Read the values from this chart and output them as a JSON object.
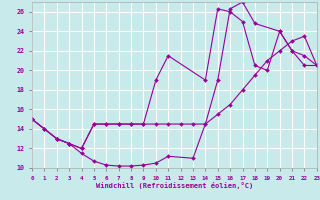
{
  "xlabel": "Windchill (Refroidissement éolien,°C)",
  "bg_color": "#c8eaea",
  "line_color": "#990099",
  "grid_color": "#ffffff",
  "xmin": 0,
  "xmax": 23,
  "ymin": 10,
  "ymax": 27,
  "yticks": [
    10,
    12,
    14,
    16,
    18,
    20,
    22,
    24,
    26
  ],
  "xticks": [
    0,
    1,
    2,
    3,
    4,
    5,
    6,
    7,
    8,
    9,
    10,
    11,
    12,
    13,
    14,
    15,
    16,
    17,
    18,
    19,
    20,
    21,
    22,
    23
  ],
  "line1_x": [
    0,
    1,
    2,
    3,
    4,
    5,
    6,
    7,
    8,
    9,
    10,
    11,
    13,
    14,
    15,
    16,
    17,
    18,
    20,
    21,
    22,
    23
  ],
  "line1_y": [
    15.0,
    14.0,
    13.0,
    12.5,
    11.5,
    10.7,
    10.3,
    10.2,
    10.2,
    10.3,
    10.5,
    11.2,
    11.0,
    14.5,
    19.0,
    26.3,
    27.0,
    24.8,
    24.0,
    22.0,
    20.5,
    20.5
  ],
  "line2_x": [
    0,
    1,
    2,
    3,
    4,
    5,
    6,
    7,
    8,
    9,
    10,
    11,
    12,
    13,
    14,
    15,
    16,
    17,
    18,
    19,
    20,
    21,
    22,
    23
  ],
  "line2_y": [
    15.0,
    14.0,
    13.0,
    12.5,
    12.0,
    14.5,
    14.5,
    14.5,
    14.5,
    14.5,
    14.5,
    14.5,
    14.5,
    14.5,
    14.5,
    15.5,
    16.5,
    18.0,
    19.5,
    21.0,
    22.0,
    23.0,
    23.5,
    20.5
  ],
  "line3_x": [
    0,
    2,
    3,
    4,
    5,
    6,
    7,
    8,
    9,
    10,
    11,
    14,
    15,
    16,
    17,
    18,
    19,
    20,
    21,
    22,
    23
  ],
  "line3_y": [
    15.0,
    13.0,
    12.5,
    12.0,
    14.5,
    14.5,
    14.5,
    14.5,
    14.5,
    19.0,
    21.5,
    19.0,
    26.3,
    26.0,
    25.0,
    20.5,
    20.0,
    24.0,
    22.0,
    21.5,
    20.5
  ]
}
